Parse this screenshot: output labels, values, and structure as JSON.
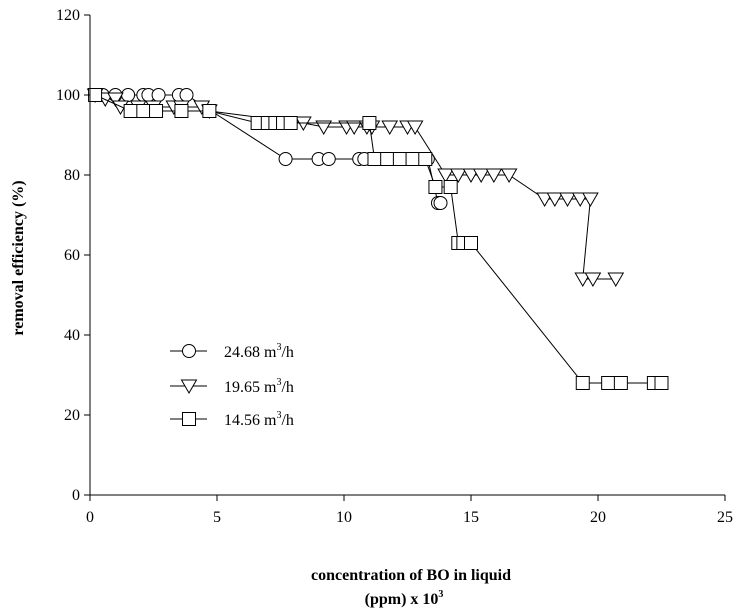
{
  "chart_data": {
    "type": "line",
    "title": "",
    "xlabel_line1": "concentration of BO in liquid",
    "xlabel_line2_main": "(ppm) x 10",
    "xlabel_line2_sup": "3",
    "ylabel": "removal efficiency (%)",
    "xlim": [
      0,
      25
    ],
    "ylim": [
      0,
      120
    ],
    "xticks": [
      0,
      5,
      10,
      15,
      20,
      25
    ],
    "yticks": [
      0,
      20,
      40,
      60,
      80,
      100,
      120
    ],
    "grid": false,
    "legend_position": "lower-left",
    "series": [
      {
        "name_main": "24.68 m",
        "name_sup": "3",
        "name_tail": "/h",
        "marker": "circle",
        "points": [
          [
            0.2,
            100
          ],
          [
            0.5,
            100
          ],
          [
            1.0,
            100
          ],
          [
            1.5,
            100
          ],
          [
            2.1,
            100
          ],
          [
            2.3,
            100
          ],
          [
            2.7,
            100
          ],
          [
            3.5,
            100
          ],
          [
            3.8,
            100
          ],
          [
            7.7,
            84
          ],
          [
            9.0,
            84
          ],
          [
            9.4,
            84
          ],
          [
            10.6,
            84
          ],
          [
            10.8,
            84
          ],
          [
            11.6,
            84
          ],
          [
            12.0,
            84
          ],
          [
            12.9,
            84
          ],
          [
            13.3,
            84
          ],
          [
            13.7,
            73
          ],
          [
            13.8,
            73
          ]
        ]
      },
      {
        "name_main": "19.65 m",
        "name_sup": "3",
        "name_tail": "/h",
        "marker": "triangle-down",
        "points": [
          [
            0.2,
            100
          ],
          [
            0.6,
            99
          ],
          [
            1.0,
            99
          ],
          [
            1.2,
            97
          ],
          [
            1.9,
            97
          ],
          [
            2.5,
            97
          ],
          [
            3.3,
            97
          ],
          [
            3.6,
            97
          ],
          [
            4.4,
            97
          ],
          [
            4.7,
            96
          ],
          [
            8.4,
            93
          ],
          [
            9.2,
            92
          ],
          [
            10.1,
            92
          ],
          [
            10.4,
            92
          ],
          [
            10.9,
            92
          ],
          [
            11.1,
            92
          ],
          [
            11.8,
            92
          ],
          [
            12.5,
            92
          ],
          [
            12.8,
            92
          ],
          [
            14.0,
            80
          ],
          [
            14.5,
            80
          ],
          [
            15.0,
            80
          ],
          [
            15.4,
            80
          ],
          [
            15.9,
            80
          ],
          [
            16.5,
            80
          ],
          [
            17.9,
            74
          ],
          [
            18.3,
            74
          ],
          [
            18.8,
            74
          ],
          [
            19.3,
            74
          ],
          [
            19.7,
            74
          ],
          [
            19.4,
            54
          ],
          [
            19.8,
            54
          ],
          [
            20.7,
            54
          ]
        ]
      },
      {
        "name_main": "14.56 m",
        "name_sup": "3",
        "name_tail": "/h",
        "marker": "square",
        "points": [
          [
            0.2,
            100
          ],
          [
            1.6,
            96
          ],
          [
            2.1,
            96
          ],
          [
            2.6,
            96
          ],
          [
            3.6,
            96
          ],
          [
            4.7,
            96
          ],
          [
            6.6,
            93
          ],
          [
            7.0,
            93
          ],
          [
            7.3,
            93
          ],
          [
            7.6,
            93
          ],
          [
            7.9,
            93
          ],
          [
            11.0,
            93
          ],
          [
            11.2,
            84
          ],
          [
            11.7,
            84
          ],
          [
            12.2,
            84
          ],
          [
            12.7,
            84
          ],
          [
            13.2,
            84
          ],
          [
            13.6,
            77
          ],
          [
            14.2,
            77
          ],
          [
            14.5,
            63
          ],
          [
            14.7,
            63
          ],
          [
            15.0,
            63
          ],
          [
            19.4,
            28
          ],
          [
            20.4,
            28
          ],
          [
            20.9,
            28
          ],
          [
            22.2,
            28
          ],
          [
            22.5,
            28
          ]
        ]
      }
    ]
  }
}
